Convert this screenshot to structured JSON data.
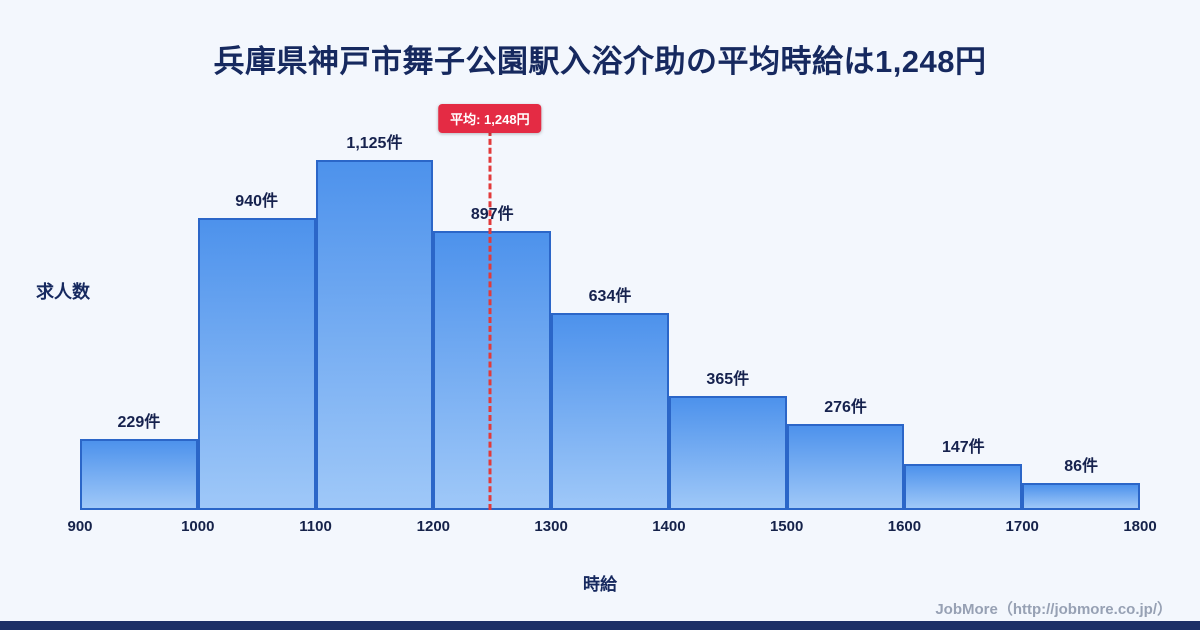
{
  "page": {
    "title": "兵庫県神戸市舞子公園駅入浴介助の平均時給は1,248円",
    "footer": "JobMore（http://jobmore.co.jp/）"
  },
  "chart_data": {
    "type": "bar",
    "subtype": "histogram",
    "title": "兵庫県神戸市舞子公園駅入浴介助の平均時給は1,248円",
    "xlabel": "時給",
    "ylabel": "求人数",
    "x_range": [
      900,
      1800
    ],
    "bin_edges": [
      900,
      1000,
      1100,
      1200,
      1300,
      1400,
      1500,
      1600,
      1700,
      1800
    ],
    "tick_labels": [
      "900",
      "1000",
      "1100",
      "1200",
      "1300",
      "1400",
      "1500",
      "1600",
      "1700",
      "1800"
    ],
    "counts": [
      229,
      940,
      1125,
      897,
      634,
      365,
      276,
      147,
      86
    ],
    "count_labels": [
      "229件",
      "940件",
      "1,125件",
      "897件",
      "634件",
      "365件",
      "276件",
      "147件",
      "86件"
    ],
    "average": {
      "value": 1248,
      "label": "平均: 1,248円"
    },
    "legend": "none",
    "grid": "off",
    "colors": {
      "background": "#f3f7fd",
      "bar_fill_top": "#4d92ec",
      "bar_fill_bottom": "#9fc8f8",
      "bar_border": "#2b66c8",
      "average_line": "#e23a3a",
      "average_badge_bg": "#e42b44",
      "title_text": "#16295f",
      "footer_text": "#97a1b4",
      "bottom_strip": "#1c2f66"
    }
  }
}
